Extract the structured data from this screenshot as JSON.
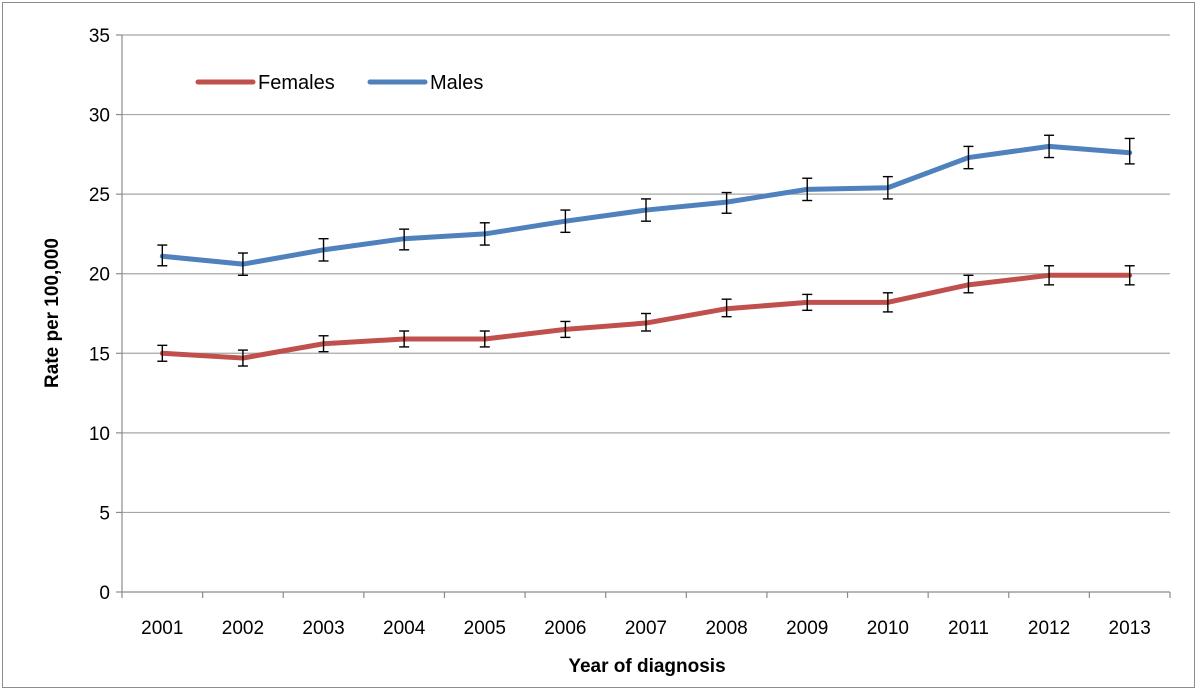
{
  "chart_data": {
    "type": "line",
    "title": "",
    "xlabel": "Year of diagnosis",
    "ylabel": "Rate per 100,000",
    "categories": [
      "2001",
      "2002",
      "2003",
      "2004",
      "2005",
      "2006",
      "2007",
      "2008",
      "2009",
      "2010",
      "2011",
      "2012",
      "2013"
    ],
    "ylim": [
      0,
      35
    ],
    "yticks": [
      0,
      5,
      10,
      15,
      20,
      25,
      30,
      35
    ],
    "grid": true,
    "legend_position": "top-left",
    "error_bars": true,
    "series": [
      {
        "name": "Females",
        "color": "#c0504d",
        "values": [
          15.0,
          14.7,
          15.6,
          15.9,
          15.9,
          16.5,
          16.9,
          17.8,
          18.2,
          18.2,
          19.3,
          19.9,
          19.9
        ],
        "lower": [
          14.5,
          14.2,
          15.1,
          15.4,
          15.4,
          16.0,
          16.4,
          17.3,
          17.7,
          17.6,
          18.8,
          19.3,
          19.3
        ],
        "upper": [
          15.5,
          15.2,
          16.1,
          16.4,
          16.4,
          17.0,
          17.5,
          18.4,
          18.7,
          18.8,
          19.9,
          20.5,
          20.5
        ]
      },
      {
        "name": "Males",
        "color": "#4f81bd",
        "values": [
          21.1,
          20.6,
          21.5,
          22.2,
          22.5,
          23.3,
          24.0,
          24.5,
          25.3,
          25.4,
          27.3,
          28.0,
          27.6
        ],
        "lower": [
          20.5,
          19.9,
          20.8,
          21.5,
          21.8,
          22.6,
          23.3,
          23.8,
          24.6,
          24.7,
          26.6,
          27.3,
          26.9
        ],
        "upper": [
          21.8,
          21.3,
          22.2,
          22.8,
          23.2,
          24.0,
          24.7,
          25.1,
          26.0,
          26.1,
          28.0,
          28.7,
          28.5
        ]
      }
    ]
  }
}
